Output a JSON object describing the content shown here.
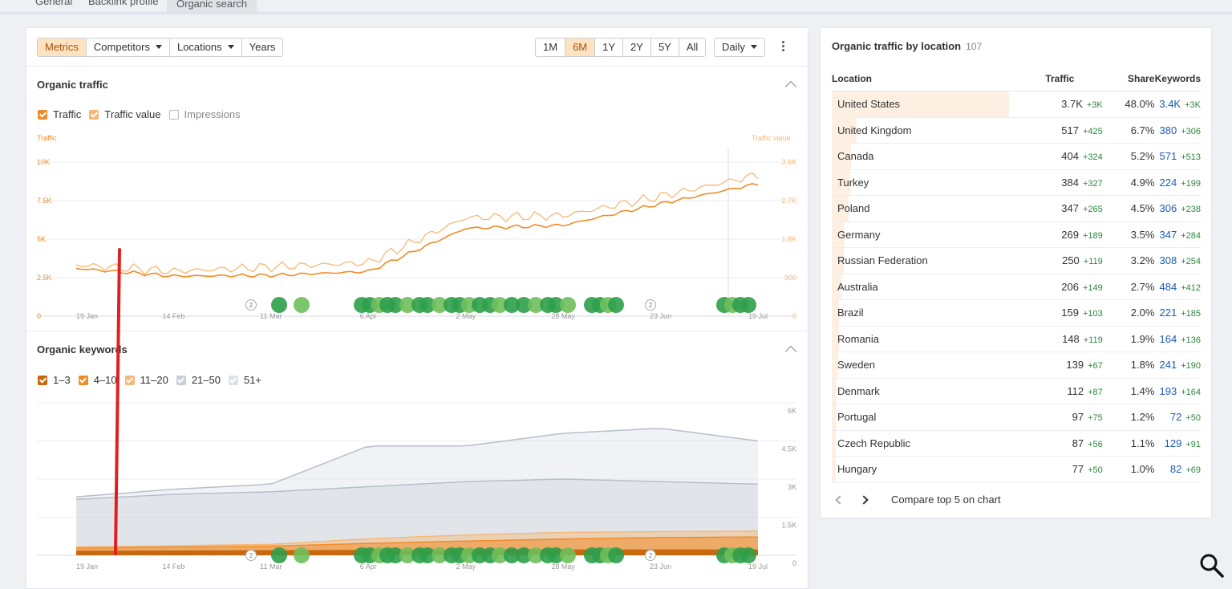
{
  "top_tabs": [
    "General",
    "Backlink profile",
    "Organic search"
  ],
  "toolbar": {
    "left": [
      {
        "label": "Metrics",
        "active": true,
        "caret": false
      },
      {
        "label": "Competitors",
        "active": false,
        "caret": true
      },
      {
        "label": "Locations",
        "active": false,
        "caret": true
      },
      {
        "label": "Years",
        "active": false,
        "caret": false
      }
    ],
    "ranges": [
      {
        "label": "1M",
        "active": false
      },
      {
        "label": "6M",
        "active": true
      },
      {
        "label": "1Y",
        "active": false
      },
      {
        "label": "2Y",
        "active": false
      },
      {
        "label": "5Y",
        "active": false
      },
      {
        "label": "All",
        "active": false
      }
    ],
    "interval": "Daily"
  },
  "organic_traffic": {
    "title": "Organic traffic",
    "legend": [
      {
        "label": "Traffic",
        "checked": true,
        "color": "#f08c28"
      },
      {
        "label": "Traffic value",
        "checked": true,
        "color": "#f6b877"
      },
      {
        "label": "Impressions",
        "checked": false,
        "color": "#ffffff"
      }
    ],
    "left_axis_title": "Traffic",
    "right_axis_title": "Traffic value",
    "left_ticks": [
      "10K",
      "7.5K",
      "5K",
      "2.5K",
      "0"
    ],
    "right_ticks": [
      "3.6K",
      "2.7K",
      "1.8K",
      "900",
      "0"
    ],
    "x_ticks": [
      "19 Jan",
      "14 Feb",
      "11 Mar",
      "6 Apr",
      "2 May",
      "28 May",
      "23 Jun",
      "19 Jul"
    ]
  },
  "organic_keywords": {
    "title": "Organic keywords",
    "legend": [
      {
        "label": "1–3",
        "checked": true,
        "color": "#c8680f"
      },
      {
        "label": "4–10",
        "checked": true,
        "color": "#f08c28"
      },
      {
        "label": "11–20",
        "checked": true,
        "color": "#f6b877"
      },
      {
        "label": "21–50",
        "checked": true,
        "color": "#c7ced8"
      },
      {
        "label": "51+",
        "checked": true,
        "color": "#dde2e8"
      }
    ],
    "right_ticks": [
      "6K",
      "4.5K",
      "3K",
      "1.5K",
      "0"
    ],
    "x_ticks": [
      "19 Jan",
      "14 Feb",
      "11 Mar",
      "6 Apr",
      "2 May",
      "28 May",
      "23 Jun",
      "19 Jul"
    ]
  },
  "chart_data": [
    {
      "type": "line",
      "title": "Organic traffic",
      "x": [
        "19 Jan",
        "14 Feb",
        "11 Mar",
        "6 Apr",
        "2 May",
        "28 May",
        "23 Jun",
        "19 Jul"
      ],
      "series": [
        {
          "name": "Traffic",
          "values": [
            3100,
            2600,
            2650,
            2900,
            5700,
            5900,
            7300,
            8600
          ]
        },
        {
          "name": "Traffic value",
          "values": [
            1200,
            1050,
            1150,
            1250,
            2300,
            2350,
            2800,
            3300
          ]
        }
      ],
      "ylim": [
        0,
        10000
      ],
      "ylim_right": [
        0,
        3600
      ]
    },
    {
      "type": "area",
      "title": "Organic keywords",
      "x": [
        "19 Jan",
        "14 Feb",
        "11 Mar",
        "6 Apr",
        "2 May",
        "28 May",
        "23 Jun",
        "19 Jul"
      ],
      "series": [
        {
          "name": "1–3",
          "values": [
            150,
            160,
            170,
            180,
            190,
            200,
            200,
            200
          ]
        },
        {
          "name": "4–10",
          "values": [
            280,
            320,
            360,
            470,
            560,
            640,
            700,
            720
          ]
        },
        {
          "name": "11–20",
          "values": [
            330,
            380,
            430,
            650,
            800,
            900,
            930,
            950
          ]
        },
        {
          "name": "21–50",
          "values": [
            2200,
            2400,
            2500,
            2700,
            2900,
            3000,
            2900,
            2800
          ]
        },
        {
          "name": "51+",
          "values": [
            2300,
            2600,
            2800,
            4300,
            4300,
            4800,
            5000,
            4500
          ]
        }
      ],
      "ylim": [
        0,
        6000
      ]
    }
  ],
  "location_panel": {
    "title": "Organic traffic by location",
    "count": "107",
    "headers": [
      "Location",
      "Traffic",
      "Share",
      "Keywords"
    ],
    "rows": [
      {
        "location": "United States",
        "traffic": "3.7K",
        "traffic_delta": "+3K",
        "share": "48.0%",
        "share_value": 0.48,
        "keywords": "3.4K",
        "keywords_delta": "+3K"
      },
      {
        "location": "United Kingdom",
        "traffic": "517",
        "traffic_delta": "+425",
        "share": "6.7%",
        "share_value": 0.067,
        "keywords": "380",
        "keywords_delta": "+306"
      },
      {
        "location": "Canada",
        "traffic": "404",
        "traffic_delta": "+324",
        "share": "5.2%",
        "share_value": 0.052,
        "keywords": "571",
        "keywords_delta": "+513"
      },
      {
        "location": "Turkey",
        "traffic": "384",
        "traffic_delta": "+327",
        "share": "4.9%",
        "share_value": 0.049,
        "keywords": "224",
        "keywords_delta": "+199"
      },
      {
        "location": "Poland",
        "traffic": "347",
        "traffic_delta": "+265",
        "share": "4.5%",
        "share_value": 0.045,
        "keywords": "306",
        "keywords_delta": "+238"
      },
      {
        "location": "Germany",
        "traffic": "269",
        "traffic_delta": "+189",
        "share": "3.5%",
        "share_value": 0.035,
        "keywords": "347",
        "keywords_delta": "+284"
      },
      {
        "location": "Russian Federation",
        "traffic": "250",
        "traffic_delta": "+119",
        "share": "3.2%",
        "share_value": 0.032,
        "keywords": "308",
        "keywords_delta": "+254"
      },
      {
        "location": "Australia",
        "traffic": "206",
        "traffic_delta": "+149",
        "share": "2.7%",
        "share_value": 0.027,
        "keywords": "484",
        "keywords_delta": "+412"
      },
      {
        "location": "Brazil",
        "traffic": "159",
        "traffic_delta": "+103",
        "share": "2.0%",
        "share_value": 0.02,
        "keywords": "221",
        "keywords_delta": "+185"
      },
      {
        "location": "Romania",
        "traffic": "148",
        "traffic_delta": "+119",
        "share": "1.9%",
        "share_value": 0.019,
        "keywords": "164",
        "keywords_delta": "+136"
      },
      {
        "location": "Sweden",
        "traffic": "139",
        "traffic_delta": "+67",
        "share": "1.8%",
        "share_value": 0.018,
        "keywords": "241",
        "keywords_delta": "+190"
      },
      {
        "location": "Denmark",
        "traffic": "112",
        "traffic_delta": "+87",
        "share": "1.4%",
        "share_value": 0.014,
        "keywords": "193",
        "keywords_delta": "+164"
      },
      {
        "location": "Portugal",
        "traffic": "97",
        "traffic_delta": "+75",
        "share": "1.2%",
        "share_value": 0.012,
        "keywords": "72",
        "keywords_delta": "+50"
      },
      {
        "location": "Czech Republic",
        "traffic": "87",
        "traffic_delta": "+56",
        "share": "1.1%",
        "share_value": 0.011,
        "keywords": "129",
        "keywords_delta": "+91"
      },
      {
        "location": "Hungary",
        "traffic": "77",
        "traffic_delta": "+50",
        "share": "1.0%",
        "share_value": 0.01,
        "keywords": "82",
        "keywords_delta": "+69"
      }
    ],
    "footer_link": "Compare top 5 on chart"
  },
  "annotation_markers": [
    "2",
    "2"
  ],
  "colors": {
    "accent": "#f08c28",
    "accent_light": "#f6b877",
    "positive": "#2a8a3a",
    "link": "#1c5ab5",
    "marker_green": "#2e9e4a",
    "overlay_red": "#e02020"
  },
  "icons": [
    "kebab-menu-icon",
    "chevron-up-icon",
    "chevron-left-icon",
    "chevron-right-icon",
    "search-icon"
  ]
}
